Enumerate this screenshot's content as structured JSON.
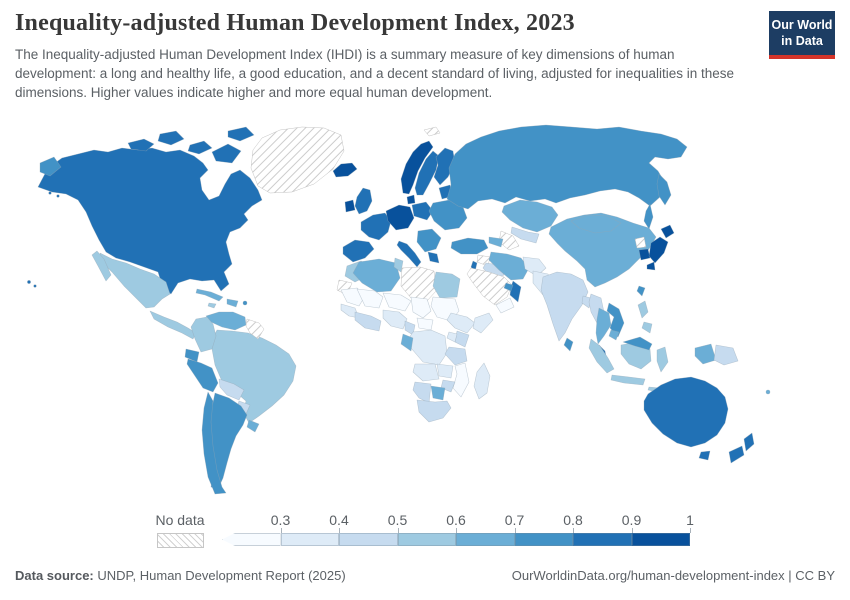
{
  "header": {
    "title": "Inequality-adjusted Human Development Index, 2023",
    "subtitle": "The Inequality-adjusted Human Development Index (IHDI) is a summary measure of key dimensions of human development: a long and healthy life, a good education, and a decent standard of living, adjusted for inequalities in these dimensions. Higher values indicate higher and more equal human development.",
    "logo": {
      "line1": "Our World",
      "line2": "in Data",
      "bg_color": "#1d3d63",
      "accent_color": "#d4342a"
    }
  },
  "legend": {
    "no_data_label": "No data",
    "tick_labels": [
      "0.3",
      "0.4",
      "0.5",
      "0.6",
      "0.7",
      "0.8",
      "0.9",
      "1"
    ],
    "bins": [
      {
        "range": "<0.3",
        "color": "#f7fbff"
      },
      {
        "range": "0.3-0.4",
        "color": "#deebf7"
      },
      {
        "range": "0.4-0.5",
        "color": "#c6dbef"
      },
      {
        "range": "0.5-0.6",
        "color": "#9ecae1"
      },
      {
        "range": "0.6-0.7",
        "color": "#6baed6"
      },
      {
        "range": "0.7-0.8",
        "color": "#4292c6"
      },
      {
        "range": "0.8-0.9",
        "color": "#2171b5"
      },
      {
        "range": "0.9-1",
        "color": "#08519c"
      }
    ]
  },
  "footer": {
    "source_label": "Data source:",
    "source_text": " UNDP, Human Development Report (2025)",
    "right_text": "OurWorldinData.org/human-development-index | CC BY"
  },
  "chart_data": {
    "type": "choropleth-map",
    "title": "Inequality-adjusted Human Development Index, 2023",
    "value_range": [
      0.3,
      1
    ],
    "legend_position": "bottom",
    "no_data_style": "hatched",
    "regions": {
      "chukotka": 6,
      "north-america": 7,
      "arctic-islands": 7,
      "greenland": "nodata",
      "hawaii": 7,
      "mexico": 4,
      "central-america": 4,
      "costa-rica-panama": 6,
      "cuba": 5,
      "hispaniola": 5,
      "jamaica": 4,
      "puerto-rico": 6,
      "venezuela": 5,
      "guianas": "nodata",
      "colombia": 4,
      "ecuador": 6,
      "peru": 6,
      "brazil": 4,
      "bolivia": 3,
      "paraguay": 3,
      "uruguay": 5,
      "argentina": 6,
      "chile": 6,
      "iceland": 8,
      "svalbard": "nodata",
      "norway": 8,
      "sweden": 7,
      "finland": 7,
      "denmark": 8,
      "baltics": 7,
      "uk": 7,
      "ireland": 8,
      "france": 7,
      "iberia": 7,
      "central-europe": 8,
      "italy": 7,
      "poland": 7,
      "eastern-europe": 6,
      "balkans": 6,
      "greece": 7,
      "russia": 6,
      "kazakhstan": 5,
      "uzbekistan": 3,
      "turkmenistan": "nodata",
      "caucasus": 5,
      "turkey": 6,
      "syria": "nodata",
      "iraq": 3,
      "israel": 7,
      "saudi-arabia": "nodata",
      "yemen": 1,
      "oman": 7,
      "uae": 6,
      "iran": 5,
      "afghanistan": 2,
      "pakistan": 2,
      "india": 3,
      "sri-lanka": 6,
      "bangladesh": 3,
      "myanmar": 3,
      "thailand": 5,
      "vietnam": 6,
      "cambodia": 5,
      "malay-peninsula": 7,
      "china": 5,
      "mongolia": 5,
      "north-korea": "nodata",
      "south-korea": 8,
      "japan": 8,
      "taiwan": 6,
      "philippines": 4,
      "indonesia": 4,
      "malaysia-borneo": 6,
      "west-papua": 5,
      "papua-new-guinea": 3,
      "fiji": 5,
      "australia": 7,
      "new-zealand": 7,
      "morocco": 4,
      "western-sahara": "nodata",
      "algeria": 5,
      "tunisia": 4,
      "libya": "nodata",
      "egypt": 4,
      "mauritania": 1,
      "mali": 1,
      "niger": 1,
      "chad": 1,
      "sudan": 1,
      "senegal-guinea": 2,
      "west-africa-coast": 3,
      "nigeria": 2,
      "cameroon": 3,
      "central-african-republic": 1,
      "ethiopia": 2,
      "somalia": 2,
      "kenya": 3,
      "uganda": 2,
      "drc": 2,
      "gabon": 5,
      "tanzania": 3,
      "angola": 2,
      "zambia": 2,
      "mozambique": 1,
      "zimbabwe": 3,
      "namibia": 3,
      "botswana": 5,
      "south-africa": 3,
      "madagascar": 2
    }
  }
}
